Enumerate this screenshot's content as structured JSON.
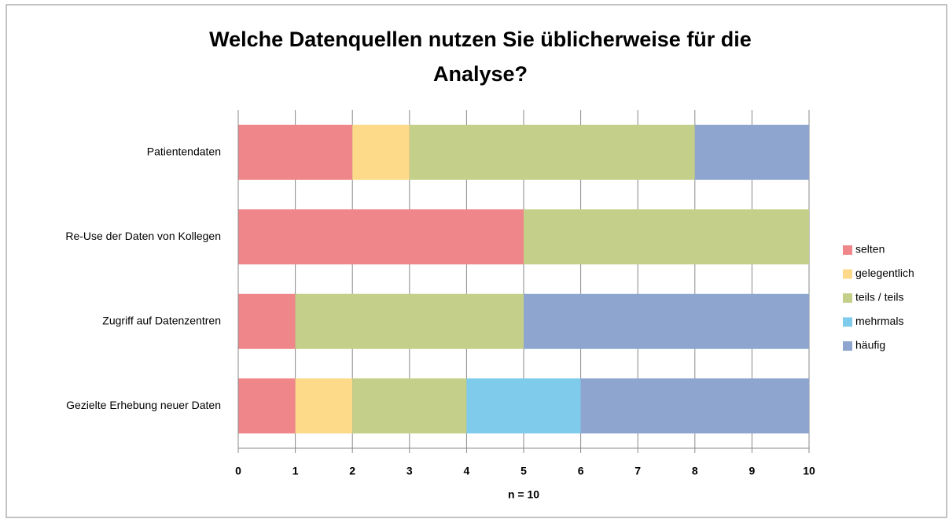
{
  "chart_data": {
    "type": "stacked_bar_horizontal",
    "title": [
      "Welche Datenquellen nutzen Sie üblicherweise für die",
      "Analyse?"
    ],
    "x_label": "n = 10",
    "categories": [
      "Patientendaten",
      "Re-Use der Daten von Kollegen",
      "Zugriff auf Datenzentren",
      "Gezielte Erhebung neuer Daten"
    ],
    "series": [
      {
        "name": "selten",
        "color": "#ef868a",
        "values": [
          2,
          5,
          1,
          1
        ]
      },
      {
        "name": "gelegentlich",
        "color": "#fdd98a",
        "values": [
          1,
          0,
          0,
          1
        ]
      },
      {
        "name": "teils / teils",
        "color": "#c4d08a",
        "values": [
          5,
          5,
          4,
          2
        ]
      },
      {
        "name": "mehrmals",
        "color": "#7ecbeb",
        "values": [
          0,
          0,
          0,
          2
        ]
      },
      {
        "name": "häufig",
        "color": "#8ea6cf",
        "values": [
          2,
          0,
          5,
          4
        ]
      }
    ],
    "xlim": [
      0,
      10
    ],
    "xticks": [
      0,
      1,
      2,
      3,
      4,
      5,
      6,
      7,
      8,
      9,
      10
    ],
    "grid": true,
    "legend": "right"
  }
}
